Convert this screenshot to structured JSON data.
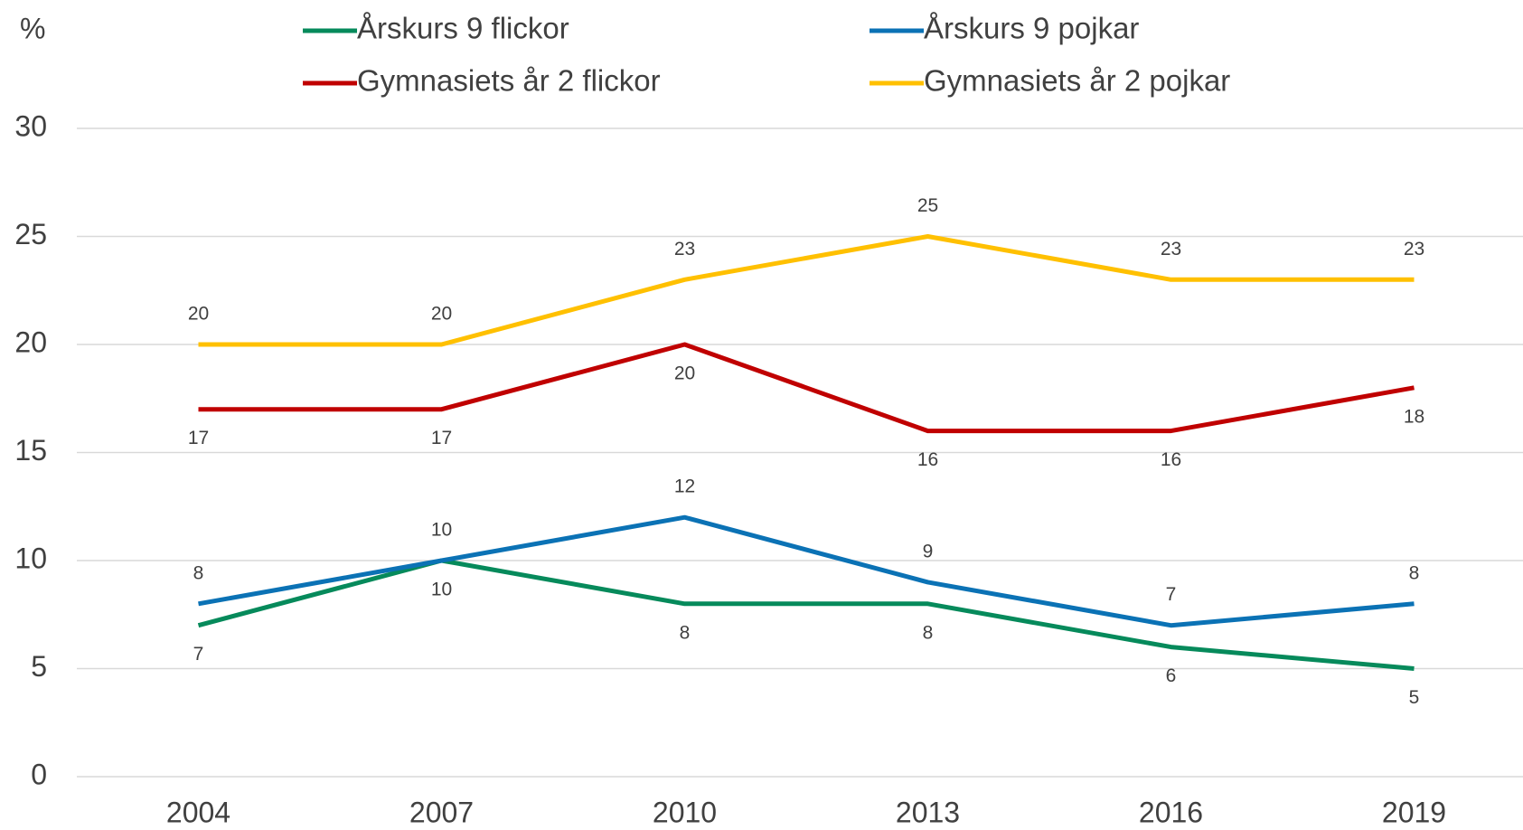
{
  "chart_data": {
    "type": "line",
    "y_label": "%",
    "categories": [
      "2004",
      "2007",
      "2010",
      "2013",
      "2016",
      "2019"
    ],
    "series": [
      {
        "name": "Årskurs 9 flickor",
        "color": "#068a5b",
        "values": [
          7,
          10,
          8,
          8,
          6,
          5
        ]
      },
      {
        "name": "Årskurs 9 pojkar",
        "color": "#0b72b5",
        "values": [
          8,
          10,
          12,
          9,
          7,
          8
        ]
      },
      {
        "name": "Gymnasiets år 2 flickor",
        "color": "#c00000",
        "values": [
          17,
          17,
          20,
          16,
          16,
          18
        ]
      },
      {
        "name": "Gymnasiets år 2 pojkar",
        "color": "#ffc000",
        "values": [
          20,
          20,
          23,
          25,
          23,
          23
        ]
      }
    ],
    "ylim": [
      0,
      30
    ],
    "yticks": [
      0,
      5,
      10,
      15,
      20,
      25,
      30
    ],
    "grid": true,
    "legend": "top"
  }
}
